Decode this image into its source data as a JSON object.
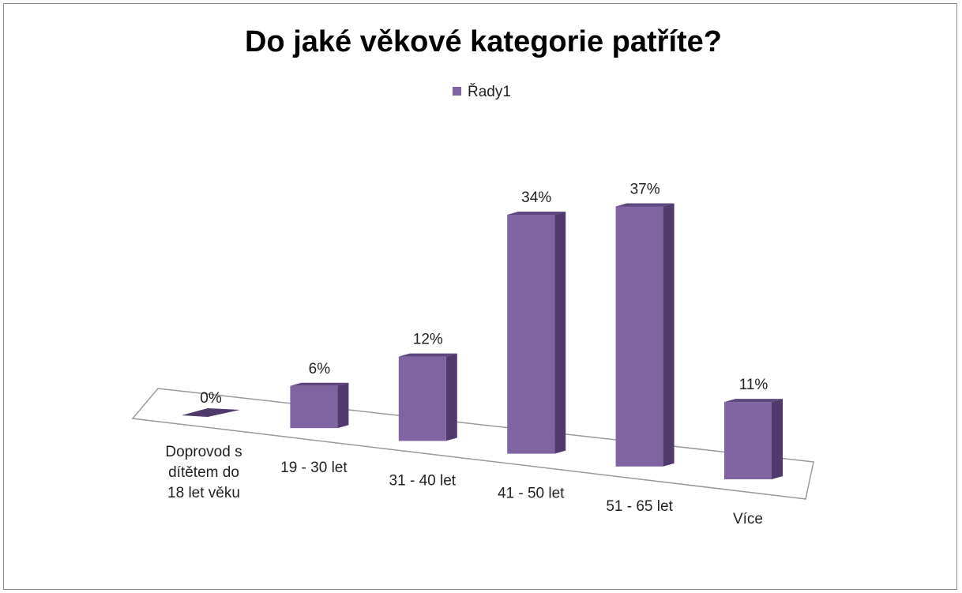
{
  "chart_data": {
    "type": "bar",
    "title": "Do jaké věkové kategorie patříte?",
    "legend_position": "top",
    "categories": [
      [
        "Doprovod s",
        "dítětem do",
        "18 let věku"
      ],
      [
        "19 - 30 let"
      ],
      [
        "31 - 40 let"
      ],
      [
        "41 - 50 let"
      ],
      [
        "51 - 65 let"
      ],
      [
        "Více"
      ]
    ],
    "series": [
      {
        "name": "Řady1",
        "values": [
          0,
          6,
          12,
          34,
          37,
          11
        ],
        "labels": [
          "0%",
          "6%",
          "12%",
          "34%",
          "37%",
          "11%"
        ]
      }
    ],
    "ylim": [
      0,
      40
    ],
    "grid": false,
    "colors": {
      "front": "#8064A2",
      "side": "#4F3A6B",
      "top": "#5E477D",
      "floor_edge": "#9a9a9a"
    }
  }
}
